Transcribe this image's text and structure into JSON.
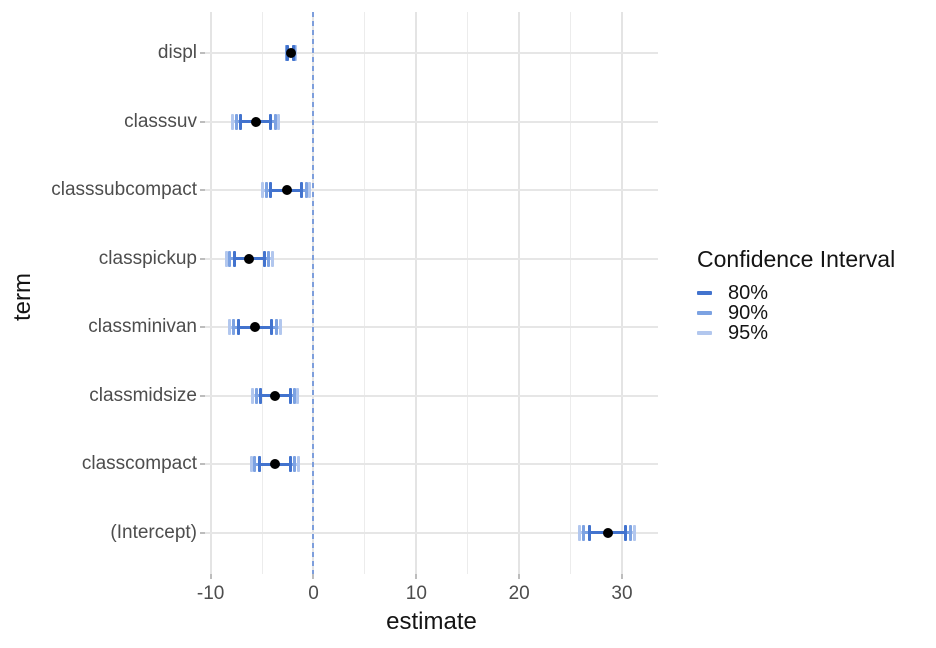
{
  "chart_data": {
    "type": "scatter",
    "subtype": "coefficient-dot-whisker-plot",
    "title": "",
    "xlabel": "estimate",
    "ylabel": "term",
    "xlim": [
      -10.55,
      33.5
    ],
    "x_major_ticks": [
      {
        "label": "-10",
        "value": -10
      },
      {
        "label": "0",
        "value": 0
      },
      {
        "label": "10",
        "value": 10
      },
      {
        "label": "20",
        "value": 20
      },
      {
        "label": "30",
        "value": 30
      }
    ],
    "x_minor_ticks": [
      -5,
      5,
      15,
      25
    ],
    "zero_reference_line": 0,
    "grid": "on",
    "legend": {
      "position": "right",
      "title": "Confidence Interval",
      "entries": [
        {
          "label": "80%",
          "color": "#4273CE"
        },
        {
          "label": "90%",
          "color": "#7CA2E2"
        },
        {
          "label": "95%",
          "color": "#B2C7EE"
        }
      ]
    },
    "terms": [
      {
        "term": "displ",
        "estimate": -2.23,
        "ci80": [
          -2.52,
          -1.94
        ],
        "ci90": [
          -2.6,
          -1.86
        ],
        "ci95": [
          -2.67,
          -1.79
        ]
      },
      {
        "term": "classsuv",
        "estimate": -5.63,
        "ci80": [
          -7.1,
          -4.16
        ],
        "ci90": [
          -7.52,
          -3.74
        ],
        "ci95": [
          -7.88,
          -3.38
        ]
      },
      {
        "term": "classsubcompact",
        "estimate": -2.6,
        "ci80": [
          -4.15,
          -1.15
        ],
        "ci90": [
          -4.58,
          -0.72
        ],
        "ci95": [
          -4.94,
          -0.36
        ]
      },
      {
        "term": "classpickup",
        "estimate": -6.25,
        "ci80": [
          -7.72,
          -4.78
        ],
        "ci90": [
          -8.14,
          -4.36
        ],
        "ci95": [
          -8.5,
          -4.0
        ]
      },
      {
        "term": "classminivan",
        "estimate": -5.7,
        "ci80": [
          -7.34,
          -4.06
        ],
        "ci90": [
          -7.81,
          -3.59
        ],
        "ci95": [
          -8.21,
          -3.19
        ]
      },
      {
        "term": "classmidsize",
        "estimate": -3.73,
        "ci80": [
          -5.18,
          -2.28
        ],
        "ci90": [
          -5.59,
          -1.87
        ],
        "ci95": [
          -5.95,
          -1.51
        ]
      },
      {
        "term": "classcompact",
        "estimate": -3.77,
        "ci80": [
          -5.27,
          -2.27
        ],
        "ci90": [
          -5.7,
          -1.84
        ],
        "ci95": [
          -6.06,
          -1.48
        ]
      },
      {
        "term": "(Intercept)",
        "estimate": 28.6,
        "ci80": [
          26.8,
          30.3
        ],
        "ci90": [
          26.3,
          30.8
        ],
        "ci95": [
          25.9,
          31.2
        ]
      }
    ],
    "colors": {
      "ci80": "#4273CE",
      "ci90": "#7CA2E2",
      "ci95": "#B2C7EE",
      "point": "#000000",
      "zero_line": "#7D9EDC",
      "grid_major": "#E4E4E4",
      "grid_minor": "#ECECEC",
      "tick_label": "#4D4D4D",
      "axis_title": "#141414"
    }
  }
}
